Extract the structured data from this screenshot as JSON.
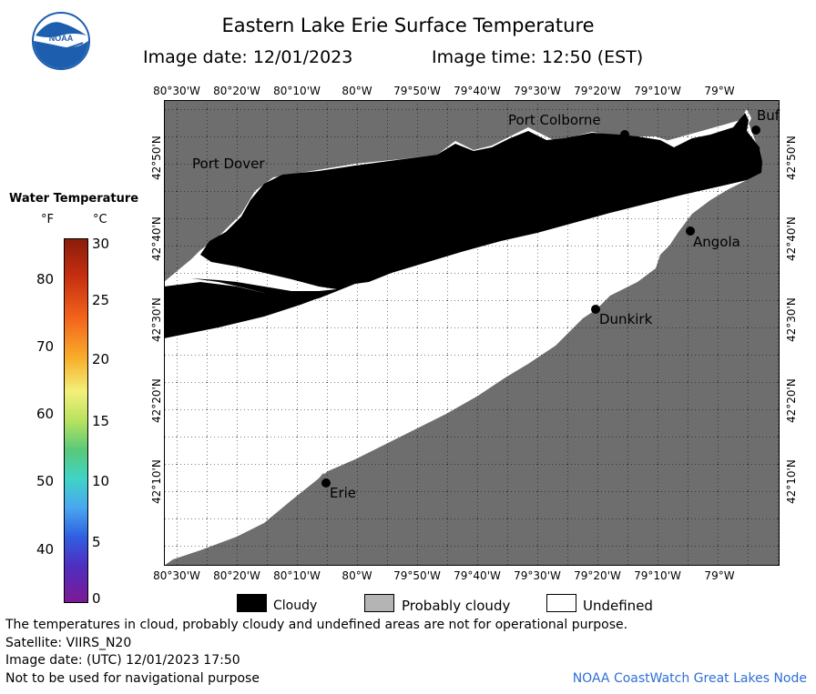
{
  "header": {
    "title": "Eastern Lake Erie Surface Temperature",
    "image_date": "Image date: 12/01/2023",
    "image_time": "Image time: 12:50 (EST)"
  },
  "logo": {
    "text": "NOAA"
  },
  "map": {
    "lon_labels": [
      "80°30'W",
      "80°20'W",
      "80°10'W",
      "80°W",
      "79°50'W",
      "79°40'W",
      "79°30'W",
      "79°20'W",
      "79°10'W",
      "79°W"
    ],
    "lat_labels": [
      "42°50'N",
      "42°40'N",
      "42°30'N",
      "42°20'N",
      "42°10'N"
    ],
    "places": {
      "port_dover": "Port Dover",
      "port_colborne": "Port Colborne",
      "buffalo": "Buf",
      "angola": "Angola",
      "dunkirk": "Dunkirk",
      "erie": "Erie"
    },
    "colors": {
      "land": "#6e6e6e",
      "cloud": "#000000",
      "undefined": "#ffffff",
      "grid": "#000000"
    }
  },
  "colorbar": {
    "title": "Water Temperature",
    "unit_f": "°F",
    "unit_c": "°C",
    "f_ticks": [
      "80",
      "70",
      "60",
      "50",
      "40"
    ],
    "c_ticks": [
      "30",
      "25",
      "20",
      "15",
      "10",
      "5",
      "0"
    ]
  },
  "legend": {
    "cloudy": "Cloudy",
    "probably_cloudy": "Probably cloudy",
    "undefined": "Undefined",
    "colors": {
      "cloudy": "#000000",
      "probably_cloudy": "#b4b4b4",
      "undefined": "#ffffff"
    }
  },
  "footer": {
    "disclaimer": "The temperatures in cloud, probably cloudy and undefined areas are not for operational purpose.",
    "satellite": "Satellite: VIIRS_N20",
    "utc_date": "Image date: (UTC) 12/01/2023  17:50",
    "nav": "Not to be used for navigational purpose",
    "credit": "NOAA CoastWatch Great Lakes Node"
  }
}
